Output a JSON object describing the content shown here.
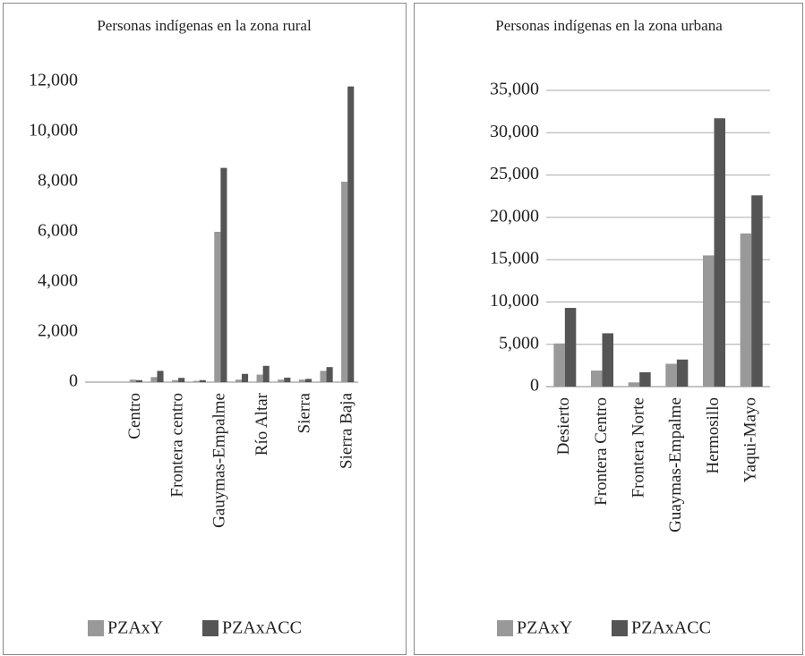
{
  "chart_data": [
    {
      "type": "bar",
      "title": "Personas indígenas en la zona rural",
      "categories": [
        "Centro",
        null,
        "Frontera centro",
        null,
        "Gauymas-Empalme",
        null,
        "Río Altar",
        null,
        "Sierra",
        null,
        "Sierra Baja"
      ],
      "series": [
        {
          "name": "PZAxY",
          "color": "#999999",
          "values": [
            100,
            200,
            80,
            50,
            6000,
            100,
            300,
            100,
            100,
            450,
            8000
          ]
        },
        {
          "name": "PZAxACC",
          "color": "#555555",
          "values": [
            80,
            450,
            170,
            80,
            8550,
            330,
            650,
            180,
            130,
            600,
            11800
          ]
        }
      ],
      "ylim": [
        0,
        12000
      ],
      "yticks": [
        0,
        {
          "value": 2000,
          "label": "2,000"
        },
        {
          "value": 4000,
          "label": "4,000"
        },
        {
          "value": 6000,
          "label": "6,000"
        },
        {
          "value": 8000,
          "label": "8,000"
        },
        {
          "value": 10000,
          "label": "10,000"
        },
        {
          "value": 12000,
          "label": "12,000"
        }
      ],
      "grid": false,
      "legend": "bottom"
    },
    {
      "type": "bar",
      "title": "Personas indígenas en la zona urbana",
      "categories": [
        "Desierto",
        "Frontera Centro",
        "Frontera Norte",
        "Guaymas-Empalme",
        "Hermosillo",
        "Yaqui-Mayo"
      ],
      "series": [
        {
          "name": "PZAxY",
          "color": "#999999",
          "values": [
            5100,
            1900,
            500,
            2700,
            15500,
            18100
          ]
        },
        {
          "name": "PZAxACC",
          "color": "#555555",
          "values": [
            9300,
            6300,
            1700,
            3200,
            31700,
            22600
          ]
        }
      ],
      "ylim": [
        0,
        35000
      ],
      "yticks": [
        0,
        {
          "value": 5000,
          "label": "5,000"
        },
        {
          "value": 10000,
          "label": "10,000"
        },
        {
          "value": 15000,
          "label": "15,000"
        },
        {
          "value": 20000,
          "label": "20,000"
        },
        {
          "value": 25000,
          "label": "25,000"
        },
        {
          "value": 30000,
          "label": "30,000"
        },
        {
          "value": 35000,
          "label": "35,000"
        }
      ],
      "grid": true,
      "legend": "bottom"
    }
  ]
}
